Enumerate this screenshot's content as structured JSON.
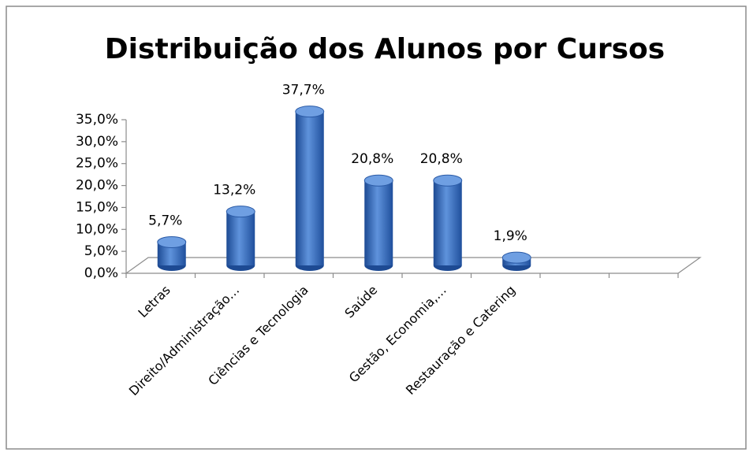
{
  "chart_data": {
    "type": "bar3d",
    "title": "Distribuição dos Alunos por Cursos",
    "categories": [
      "Letras",
      "Direito/Administração…",
      "Ciências e Tecnologia",
      "Saúde",
      "Gestão, Economia,…",
      "Restauração e Catering",
      null,
      null
    ],
    "values": [
      5.7,
      13.2,
      37.7,
      20.8,
      20.8,
      1.9,
      null,
      null
    ],
    "value_labels": [
      "5,7%",
      "13,2%",
      "37,7%",
      "20,8%",
      "20,8%",
      "1,9%",
      null,
      null
    ],
    "color": "#3a6fc4",
    "ylim": [
      0,
      35
    ],
    "yticks": [
      {
        "value": 0,
        "label": "0,0%"
      },
      {
        "value": 5,
        "label": "5,0%"
      },
      {
        "value": 10,
        "label": "10,0%"
      },
      {
        "value": 15,
        "label": "15,0%"
      },
      {
        "value": 20,
        "label": "20,0%"
      },
      {
        "value": 25,
        "label": "25,0%"
      },
      {
        "value": 30,
        "label": "30,0%"
      },
      {
        "value": 35,
        "label": "35,0%"
      }
    ],
    "grid": false
  }
}
